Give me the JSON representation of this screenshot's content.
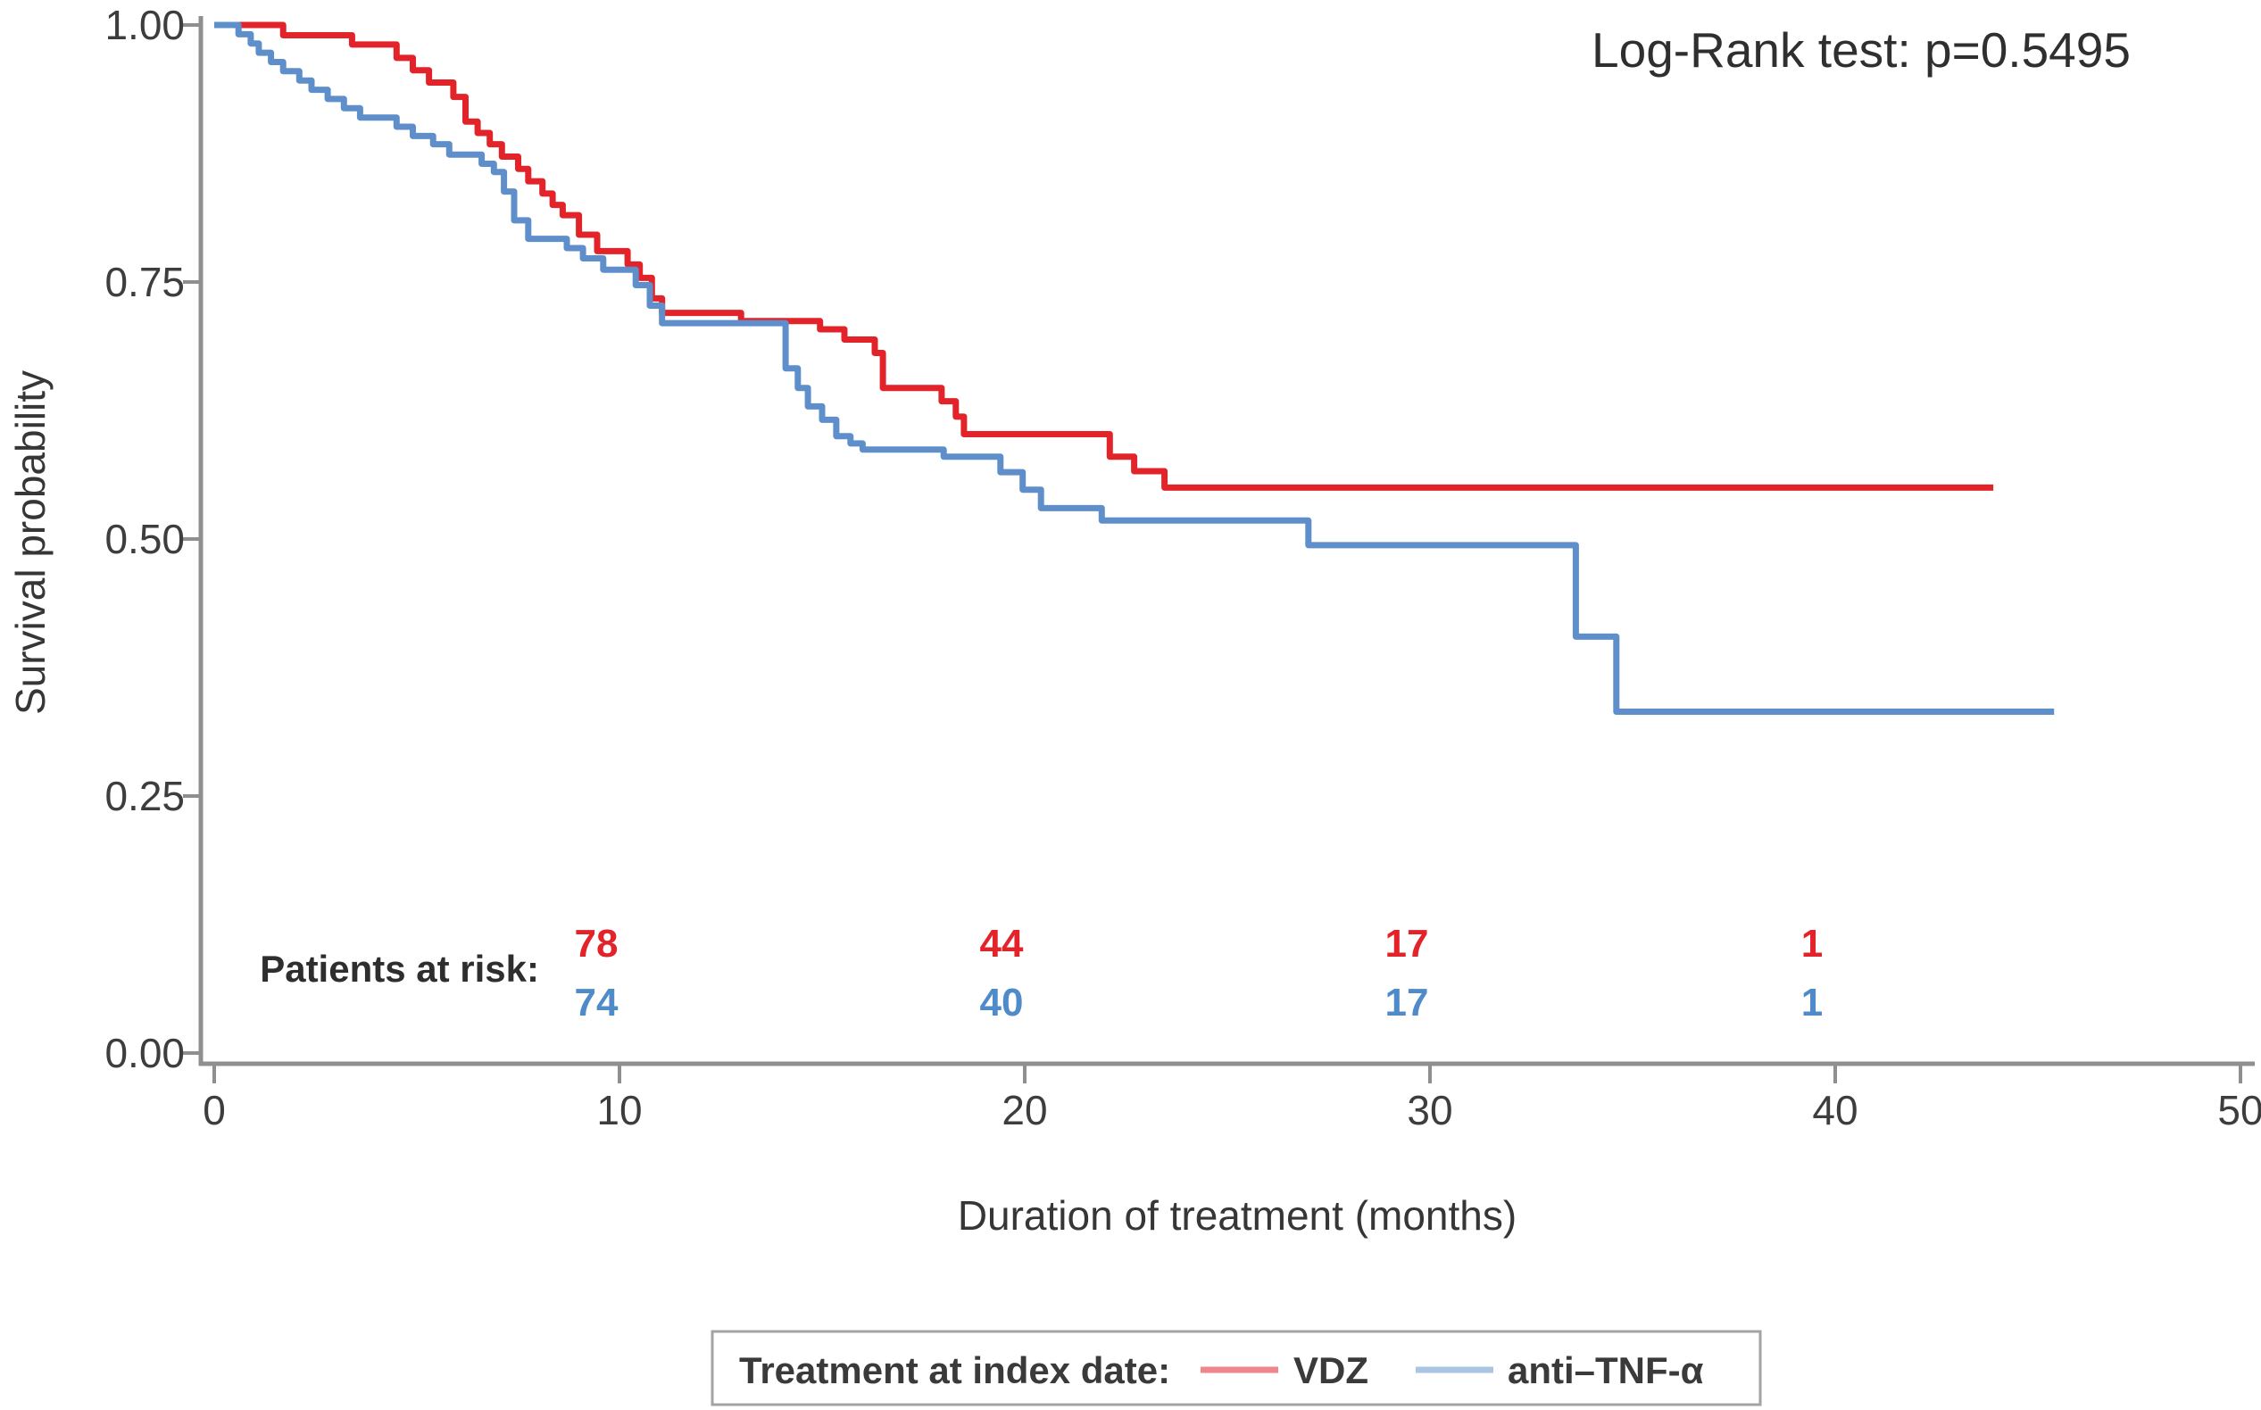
{
  "figure": {
    "annotation": "Log-Rank test: p=0.5495"
  },
  "chart_data": {
    "type": "line",
    "variant": "kaplan-meier-step",
    "title": "Log-Rank test: p=0.5495",
    "xlabel": "Duration of treatment (months)",
    "ylabel": "Survival probability",
    "xlim": [
      0,
      50
    ],
    "ylim": [
      0.0,
      1.0
    ],
    "grid": false,
    "x_ticks": [
      0,
      10,
      20,
      30,
      40,
      50
    ],
    "y_ticks": [
      {
        "value": 1.0,
        "label": "1.00"
      },
      {
        "value": 0.75,
        "label": "0.75"
      },
      {
        "value": 0.5,
        "label": "0.50"
      },
      {
        "value": 0.25,
        "label": "0.25"
      },
      {
        "value": 0.0,
        "label": "0.00"
      }
    ],
    "series": [
      {
        "name": "VDZ",
        "color": "#e2232a",
        "end_time": 43.9,
        "points": [
          [
            0,
            1.0
          ],
          [
            1.7,
            0.99
          ],
          [
            3.4,
            0.981
          ],
          [
            4.5,
            0.968
          ],
          [
            4.9,
            0.956
          ],
          [
            5.3,
            0.944
          ],
          [
            5.9,
            0.93
          ],
          [
            6.2,
            0.906
          ],
          [
            6.5,
            0.895
          ],
          [
            6.8,
            0.884
          ],
          [
            7.1,
            0.872
          ],
          [
            7.5,
            0.86
          ],
          [
            7.75,
            0.848
          ],
          [
            8.1,
            0.836
          ],
          [
            8.35,
            0.825
          ],
          [
            8.6,
            0.815
          ],
          [
            9.0,
            0.796
          ],
          [
            9.45,
            0.78
          ],
          [
            10.2,
            0.767
          ],
          [
            10.5,
            0.754
          ],
          [
            10.8,
            0.734
          ],
          [
            11.05,
            0.72
          ],
          [
            13.0,
            0.712
          ],
          [
            14.95,
            0.704
          ],
          [
            15.55,
            0.694
          ],
          [
            16.3,
            0.681
          ],
          [
            16.5,
            0.647
          ],
          [
            17.95,
            0.634
          ],
          [
            18.3,
            0.619
          ],
          [
            18.5,
            0.602
          ],
          [
            22.1,
            0.58
          ],
          [
            22.7,
            0.566
          ],
          [
            23.45,
            0.55
          ]
        ]
      },
      {
        "name": "anti–TNF-α",
        "color": "#5f8fca",
        "end_time": 45.4,
        "points": [
          [
            0,
            1.0
          ],
          [
            0.6,
            0.991
          ],
          [
            0.9,
            0.982
          ],
          [
            1.1,
            0.973
          ],
          [
            1.4,
            0.964
          ],
          [
            1.7,
            0.955
          ],
          [
            2.1,
            0.946
          ],
          [
            2.4,
            0.937
          ],
          [
            2.8,
            0.928
          ],
          [
            3.2,
            0.919
          ],
          [
            3.6,
            0.91
          ],
          [
            4.5,
            0.901
          ],
          [
            4.9,
            0.892
          ],
          [
            5.4,
            0.884
          ],
          [
            5.8,
            0.874
          ],
          [
            6.6,
            0.865
          ],
          [
            6.9,
            0.857
          ],
          [
            7.15,
            0.838
          ],
          [
            7.4,
            0.81
          ],
          [
            7.75,
            0.792
          ],
          [
            8.7,
            0.783
          ],
          [
            9.1,
            0.773
          ],
          [
            9.6,
            0.762
          ],
          [
            10.4,
            0.747
          ],
          [
            10.75,
            0.727
          ],
          [
            11.05,
            0.71
          ],
          [
            14.1,
            0.666
          ],
          [
            14.4,
            0.647
          ],
          [
            14.65,
            0.629
          ],
          [
            15.0,
            0.616
          ],
          [
            15.35,
            0.6
          ],
          [
            15.7,
            0.593
          ],
          [
            16.0,
            0.587
          ],
          [
            18.0,
            0.58
          ],
          [
            19.4,
            0.565
          ],
          [
            19.95,
            0.548
          ],
          [
            20.4,
            0.53
          ],
          [
            21.9,
            0.518
          ],
          [
            27.0,
            0.494
          ],
          [
            33.6,
            0.405
          ],
          [
            34.6,
            0.332
          ]
        ]
      }
    ],
    "risk_table": {
      "label": "Patients at risk:",
      "times": [
        10,
        20,
        30,
        40
      ],
      "rows": [
        {
          "series": "VDZ",
          "color": "#e2232a",
          "counts": [
            "78",
            "44",
            "17",
            "1"
          ]
        },
        {
          "series": "anti–TNF-α",
          "color": "#4f8ac9",
          "counts": [
            "74",
            "40",
            "17",
            "1"
          ]
        }
      ]
    }
  },
  "legend": {
    "title": "Treatment at index date:",
    "entries": [
      {
        "label": "VDZ",
        "line_color": "#f0868c"
      },
      {
        "label": "anti–TNF-α",
        "line_color": "#a9c5e3"
      }
    ]
  },
  "colors": {
    "axis": "#8f8f8f",
    "legend_border": "#a3a3a3"
  }
}
